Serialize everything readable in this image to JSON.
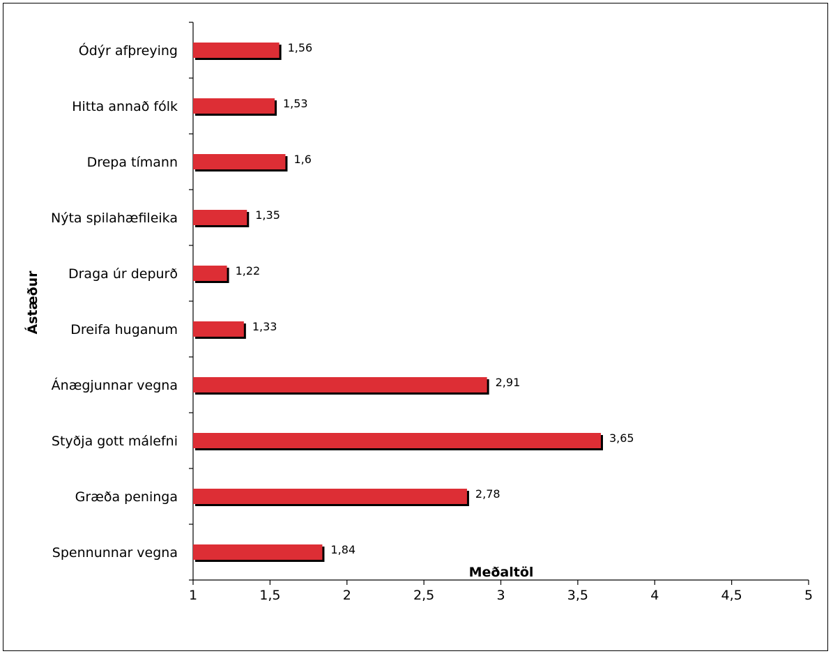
{
  "chart_data": {
    "type": "bar",
    "orientation": "horizontal",
    "categories": [
      "Ódýr afþreying",
      "Hitta annað fólk",
      "Drepa tímann",
      "Nýta spilahæfileika",
      "Draga úr depurð",
      "Dreifa huganum",
      "Ánægjunnar vegna",
      "Styðja gott málefni",
      "Græða peninga",
      "Spennunnar vegna"
    ],
    "values": [
      1.56,
      1.53,
      1.6,
      1.35,
      1.22,
      1.33,
      2.91,
      3.65,
      2.78,
      1.84
    ],
    "value_labels": [
      "1,56",
      "1,53",
      "1,6",
      "1,35",
      "1,22",
      "1,33",
      "2,91",
      "3,65",
      "2,78",
      "1,84"
    ],
    "xlim": [
      1,
      5
    ],
    "x_ticks": [
      1,
      1.5,
      2,
      2.5,
      3,
      3.5,
      4,
      4.5,
      5
    ],
    "x_tick_labels": [
      "1",
      "1,5",
      "2",
      "2,5",
      "3",
      "3,5",
      "4",
      "4,5",
      "5"
    ],
    "xlabel": "Meðaltöl",
    "ylabel": "Ástæður",
    "grid": false,
    "legend": "none",
    "colors": {
      "bar": "#dd2e35",
      "shadow": "#000000"
    }
  }
}
